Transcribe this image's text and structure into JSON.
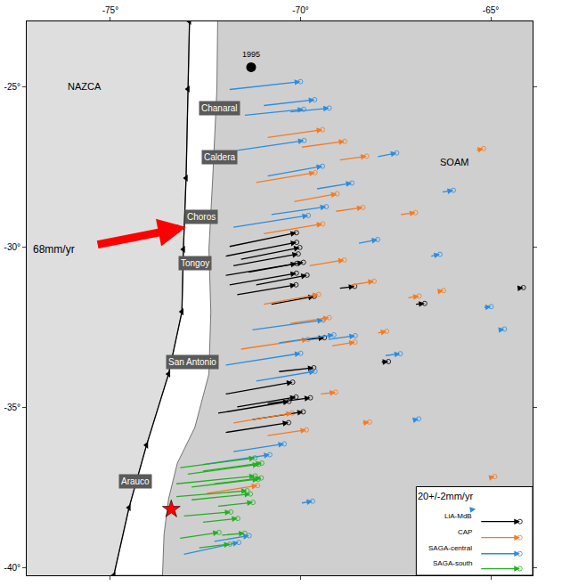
{
  "chart_data": {
    "type": "vector_map",
    "xlim": [
      -77.2,
      -63.9
    ],
    "ylim": [
      -40.25,
      -22.97
    ],
    "xticks": [
      {
        "value": -75,
        "label": "-75°"
      },
      {
        "value": -70,
        "label": "-70°"
      },
      {
        "value": -65,
        "label": "-65°"
      }
    ],
    "yticks": [
      {
        "value": -25,
        "label": "-25°"
      },
      {
        "value": -30,
        "label": "-30°"
      },
      {
        "value": -35,
        "label": "-35°"
      },
      {
        "value": -40,
        "label": "-40°"
      }
    ],
    "grid": false,
    "trench": {
      "marker": "triangle-left",
      "color": "#000000",
      "lon": [
        -72.92,
        -72.96,
        -73.01,
        -73.08,
        -73.12,
        -73.47,
        -74.05,
        -74.51,
        -74.91
      ],
      "lat": [
        -22.97,
        -25.08,
        -27.86,
        -30.08,
        -32.03,
        -33.97,
        -36.19,
        -38.14,
        -40.25
      ]
    },
    "coast": {
      "lon": [
        -72.18,
        -72.2,
        -72.31,
        -72.41,
        -72.36,
        -72.41,
        -72.78,
        -73.24,
        -73.47,
        -73.59,
        -73.63
      ],
      "lat": [
        -22.97,
        -25.08,
        -27.86,
        -30.08,
        -32.03,
        -33.97,
        -35.64,
        -36.75,
        -37.86,
        -38.97,
        -40.25
      ]
    },
    "plate_labels": [
      {
        "text": "NAZCA",
        "lon": -75.67,
        "lat": -25.0
      },
      {
        "text": "SOAM",
        "lon": -65.95,
        "lat": -27.36
      }
    ],
    "place_labels": [
      {
        "text": "Chanaral",
        "lon": -72.13,
        "lat": -25.69
      },
      {
        "text": "Caldera",
        "lon": -72.13,
        "lat": -27.22
      },
      {
        "text": "Choros",
        "lon": -72.6,
        "lat": -29.06
      },
      {
        "text": "Tongoy",
        "lon": -72.78,
        "lat": -30.5
      },
      {
        "text": "San Antonio",
        "lon": -72.85,
        "lat": -33.61
      },
      {
        "text": "Arauco",
        "lon": -74.35,
        "lat": -37.31
      }
    ],
    "plate_motion": {
      "label": "68mm/yr",
      "color": "#ff0000",
      "from": [
        -75.37,
        -29.94
      ],
      "to": [
        -73.01,
        -29.39
      ],
      "label_at": [
        -76.49,
        -30.08
      ]
    },
    "events": [
      {
        "label": "1995",
        "lon": -71.3,
        "lat": -24.4,
        "color": "#000000"
      }
    ],
    "epicenter": {
      "lon": -73.4,
      "lat": -38.19,
      "marker": "star",
      "color": "#ff0000"
    },
    "reference": {
      "value": 20,
      "label": "20+/-2mm/yr"
    },
    "series": [
      {
        "name": "LiA-MdB",
        "color": "#000000",
        "lon": [
          -71.9,
          -72.0,
          -71.8,
          -72.0,
          -71.6,
          -71.4,
          -71.9,
          -71.7,
          -71.2,
          -70.8,
          -69.0,
          -67.0,
          -72.0,
          -71.7,
          -72.2,
          -71.3,
          -70.9,
          -72.0,
          -70.6,
          -69.9,
          -67.9,
          -64.3
        ],
        "lat": [
          -30.0,
          -30.3,
          -30.6,
          -30.9,
          -30.4,
          -30.8,
          -31.2,
          -31.5,
          -31.2,
          -31.8,
          -31.3,
          -31.8,
          -34.6,
          -35.0,
          -35.2,
          -35.4,
          -34.9,
          -35.8,
          -33.9,
          -32.9,
          -33.6,
          -31.3
        ],
        "ve": [
          34,
          36,
          33,
          36,
          30,
          28,
          34,
          30,
          26,
          22,
          8,
          5,
          34,
          30,
          36,
          26,
          22,
          32,
          18,
          10,
          4,
          3
        ],
        "vn": [
          7,
          7,
          6,
          6,
          6,
          5,
          6,
          5,
          5,
          4,
          1,
          0.5,
          6,
          5,
          6,
          4,
          3,
          5,
          2,
          1,
          0.3,
          0.4
        ]
      },
      {
        "name": "CAP",
        "color": "#f47b20",
        "lon": [
          -70.9,
          -70.0,
          -69.0,
          -71.2,
          -70.2,
          -69.1,
          -67.4,
          -65.4,
          -71.0,
          -69.8,
          -68.7,
          -67.2,
          -71.0,
          -70.3,
          -69.2,
          -68.0,
          -71.6,
          -71.8,
          -70.9,
          -69.5,
          -68.4,
          -72.5,
          -66.4,
          -65.0
        ],
        "lat": [
          -26.6,
          -26.9,
          -27.3,
          -28.0,
          -28.6,
          -28.9,
          -29.0,
          -27.0,
          -29.6,
          -30.6,
          -31.2,
          -31.6,
          -31.8,
          -32.4,
          -33.1,
          -32.7,
          -33.2,
          -35.5,
          -35.9,
          -34.6,
          -35.5,
          -37.7,
          -31.4,
          -37.2
        ],
        "ve": [
          28,
          22,
          14,
          30,
          22,
          14,
          8,
          4,
          30,
          18,
          12,
          6,
          28,
          20,
          12,
          5,
          34,
          30,
          20,
          8,
          4,
          26,
          3,
          2
        ],
        "vn": [
          4,
          3,
          2,
          5,
          4,
          2,
          1,
          1,
          5,
          3,
          2,
          1,
          5,
          3,
          2,
          1,
          5,
          5,
          3,
          1,
          0.5,
          4,
          0.5,
          0.5
        ]
      },
      {
        "name": "SAGA-central",
        "color": "#2b8ce0",
        "lon": [
          -71.9,
          -71.5,
          -71.0,
          -70.3,
          -71.7,
          -70.9,
          -69.6,
          -68.0,
          -66.3,
          -71.8,
          -70.8,
          -68.5,
          -66.6,
          -71.3,
          -70.6,
          -69.3,
          -67.8,
          -65.2,
          -72.0,
          -71.2,
          -72.6,
          -71.8,
          -73.1,
          -72.3,
          -67.0,
          -64.8,
          -70.0,
          -65.5
        ],
        "lat": [
          -25.1,
          -25.9,
          -25.6,
          -25.8,
          -27.0,
          -27.8,
          -28.2,
          -27.2,
          -28.3,
          -29.4,
          -29.0,
          -29.9,
          -30.3,
          -32.6,
          -33.0,
          -32.9,
          -33.4,
          -31.9,
          -33.7,
          -34.2,
          -36.8,
          -36.4,
          -39.6,
          -39.2,
          -35.4,
          -32.6,
          -38.0,
          -38.2
        ],
        "ve": [
          36,
          30,
          26,
          20,
          34,
          28,
          18,
          10,
          6,
          38,
          28,
          10,
          5,
          36,
          28,
          14,
          8,
          4,
          38,
          30,
          34,
          26,
          28,
          18,
          2,
          3,
          6,
          2
        ],
        "vn": [
          4,
          3,
          3,
          2,
          5,
          5,
          3,
          2,
          1,
          6,
          4,
          2,
          1,
          5,
          4,
          2,
          1,
          0.5,
          6,
          5,
          5,
          4,
          6,
          3,
          0.5,
          0.5,
          1,
          0.3
        ]
      },
      {
        "name": "SAGA-south",
        "color": "#22b022",
        "lon": [
          -73.2,
          -73.0,
          -73.3,
          -72.9,
          -72.6,
          -73.3,
          -72.9,
          -72.3,
          -73.1,
          -72.6,
          -72.2,
          -73.2,
          -72.7,
          -72.1
        ],
        "lat": [
          -36.9,
          -37.1,
          -37.4,
          -37.5,
          -37.0,
          -37.8,
          -37.9,
          -37.4,
          -38.4,
          -38.6,
          -38.1,
          -39.1,
          -39.4,
          -39.0
        ],
        "ve": [
          38,
          36,
          40,
          34,
          30,
          36,
          30,
          24,
          24,
          18,
          18,
          20,
          16,
          12
        ],
        "vn": [
          5,
          5,
          4,
          4,
          4,
          3,
          3,
          3,
          2,
          2,
          2,
          3,
          2,
          1
        ]
      }
    ]
  }
}
